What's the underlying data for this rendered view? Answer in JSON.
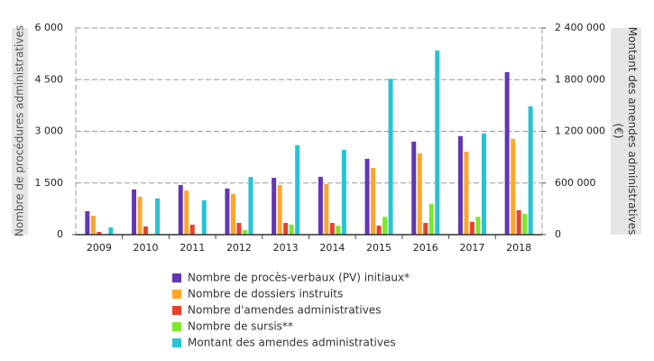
{
  "chart_data": {
    "type": "bar",
    "y_label": "Nombre de procédures administratives",
    "y2_label": "Montant des amendes administratives (€)",
    "categories": [
      "2009",
      "2010",
      "2011",
      "2012",
      "2013",
      "2014",
      "2015",
      "2016",
      "2017",
      "2018"
    ],
    "series": [
      {
        "name": "Nombre de procès-verbaux (PV) initiaux*",
        "color": "#6236b4",
        "values": [
          680,
          1310,
          1440,
          1340,
          1650,
          1680,
          2200,
          2700,
          2860,
          4720
        ]
      },
      {
        "name": "Nombre de dossiers instruits",
        "color": "#ffa62b",
        "values": [
          550,
          1100,
          1280,
          1180,
          1440,
          1470,
          1940,
          2360,
          2410,
          2780
        ]
      },
      {
        "name": "Nombre d'amendes administratives",
        "color": "#e8412c",
        "values": [
          80,
          240,
          290,
          340,
          340,
          340,
          260,
          340,
          370,
          710
        ]
      },
      {
        "name": "Nombre de sursis**",
        "color": "#7de82a",
        "values": [
          0,
          0,
          0,
          130,
          290,
          260,
          520,
          890,
          520,
          600
        ]
      },
      {
        "name": "Montant des amendes administratives",
        "color": "#26c4d4",
        "axis": "y2",
        "values": [
          84000,
          420000,
          400000,
          670000,
          1040000,
          985000,
          1810000,
          2140000,
          1175000,
          1490000
        ]
      }
    ],
    "ylim": [
      0,
      6000
    ],
    "yticks": [
      0,
      {
        "value": 1500,
        "label": "1 500"
      },
      {
        "value": 3000,
        "label": "3 000"
      },
      {
        "value": 4500,
        "label": "4 500"
      },
      {
        "value": 6000,
        "label": "6 000"
      }
    ],
    "y2lim": [
      0,
      2400000
    ],
    "y2ticks": [
      0,
      {
        "value": 600000,
        "label": "600 000"
      },
      {
        "value": 1200000,
        "label": "1 200 000"
      },
      {
        "value": 1800000,
        "label": "1 800 000"
      },
      {
        "value": 2400000,
        "label": "2 400 000"
      }
    ],
    "grid": true
  }
}
